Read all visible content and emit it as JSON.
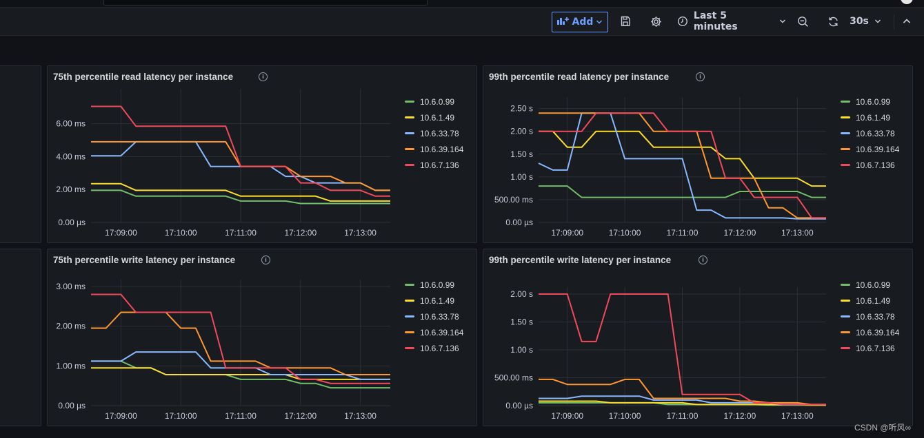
{
  "toolbar": {
    "add_label": "Add",
    "time_range": "Last 5 minutes",
    "refresh_interval": "30s"
  },
  "colors": {
    "10.6.0.99": "#73bf69",
    "10.6.1.49": "#fade2a",
    "10.6.33.78": "#8ab8ff",
    "10.6.39.164": "#ff9830",
    "10.6.7.136": "#f2495c"
  },
  "series_names": [
    "10.6.0.99",
    "10.6.1.49",
    "10.6.33.78",
    "10.6.39.164",
    "10.6.7.136"
  ],
  "watermark": "CSDN @听风∞",
  "panels": [
    {
      "title": "75th percentile read latency per instance",
      "chart_data": {
        "type": "line",
        "x_labels": [
          "17:09:00",
          "17:10:00",
          "17:11:00",
          "17:12:00",
          "17:13:00"
        ],
        "x": [
          0,
          15,
          30,
          45,
          60,
          75,
          90,
          105,
          120,
          135,
          150,
          165,
          180,
          195,
          210,
          225,
          240,
          255,
          270,
          285,
          300
        ],
        "y_ticks": [
          0,
          2,
          4,
          6
        ],
        "y_tick_labels": [
          "0.00 µs",
          "2.00 ms",
          "4.00 ms",
          "6.00 ms"
        ],
        "ylim": [
          0,
          7.7
        ],
        "unit": "ms",
        "series": [
          {
            "name": "10.6.0.99",
            "values": [
              1.95,
              1.95,
              1.95,
              1.6,
              1.6,
              1.6,
              1.6,
              1.6,
              1.6,
              1.6,
              1.3,
              1.3,
              1.3,
              1.3,
              1.15,
              1.15,
              1.15,
              1.15,
              1.15,
              1.15,
              1.15
            ]
          },
          {
            "name": "10.6.1.49",
            "values": [
              2.35,
              2.35,
              2.35,
              1.95,
              1.95,
              1.95,
              1.95,
              1.95,
              1.95,
              1.95,
              1.6,
              1.6,
              1.6,
              1.6,
              1.6,
              1.6,
              1.3,
              1.3,
              1.3,
              1.3,
              1.3
            ]
          },
          {
            "name": "10.6.33.78",
            "values": [
              4.05,
              4.05,
              4.05,
              4.9,
              4.9,
              4.9,
              4.9,
              4.9,
              3.4,
              3.4,
              3.4,
              3.4,
              3.4,
              2.8,
              2.8,
              2.4,
              2.4,
              2.4,
              2.4,
              1.95,
              1.95
            ]
          },
          {
            "name": "10.6.39.164",
            "values": [
              4.9,
              4.9,
              4.9,
              4.9,
              4.9,
              4.9,
              4.9,
              4.9,
              4.9,
              4.9,
              3.4,
              3.4,
              3.4,
              3.4,
              2.8,
              2.8,
              2.8,
              2.4,
              2.4,
              1.95,
              1.95
            ]
          },
          {
            "name": "10.6.7.136",
            "values": [
              7.05,
              7.05,
              7.05,
              5.85,
              5.85,
              5.85,
              5.85,
              5.85,
              5.85,
              5.85,
              3.4,
              3.4,
              3.4,
              3.4,
              2.4,
              2.4,
              1.95,
              1.95,
              1.95,
              1.6,
              1.6
            ]
          }
        ]
      }
    },
    {
      "title": "99th percentile read latency per instance",
      "chart_data": {
        "type": "line",
        "x_labels": [
          "17:09:00",
          "17:10:00",
          "17:11:00",
          "17:12:00",
          "17:13:00"
        ],
        "x": [
          0,
          15,
          30,
          45,
          60,
          75,
          90,
          105,
          120,
          135,
          150,
          165,
          180,
          195,
          210,
          225,
          240,
          255,
          270,
          285,
          300
        ],
        "y_ticks": [
          0,
          0.5,
          1,
          1.5,
          2,
          2.5
        ],
        "y_tick_labels": [
          "0.00 µs",
          "500.00 ms",
          "1.00 s",
          "1.50 s",
          "2.00 s",
          "2.50 s"
        ],
        "ylim": [
          0,
          2.6
        ],
        "unit": "s",
        "series": [
          {
            "name": "10.6.0.99",
            "values": [
              0.8,
              0.8,
              0.8,
              0.55,
              0.55,
              0.55,
              0.55,
              0.55,
              0.55,
              0.55,
              0.55,
              0.55,
              0.55,
              0.55,
              0.68,
              0.68,
              0.68,
              0.68,
              0.68,
              0.55,
              0.55
            ]
          },
          {
            "name": "10.6.1.49",
            "values": [
              2.0,
              2.0,
              1.65,
              1.65,
              2.0,
              2.0,
              2.0,
              2.0,
              1.65,
              1.65,
              1.65,
              1.65,
              1.65,
              1.4,
              1.4,
              0.97,
              0.97,
              0.97,
              0.97,
              0.8,
              0.8
            ]
          },
          {
            "name": "10.6.33.78",
            "values": [
              1.3,
              1.15,
              1.15,
              2.4,
              2.4,
              2.4,
              1.4,
              1.4,
              1.4,
              1.4,
              1.4,
              0.27,
              0.27,
              0.1,
              0.1,
              0.1,
              0.1,
              0.1,
              0.08,
              0.08,
              0.08
            ]
          },
          {
            "name": "10.6.39.164",
            "values": [
              2.4,
              2.4,
              2.4,
              2.4,
              2.4,
              2.4,
              2.4,
              2.4,
              2.0,
              2.0,
              2.0,
              2.0,
              0.97,
              0.97,
              0.97,
              0.97,
              0.32,
              0.32,
              0.1,
              0.1,
              0.1
            ]
          },
          {
            "name": "10.6.7.136",
            "values": [
              2.0,
              2.0,
              2.0,
              2.0,
              2.4,
              2.4,
              2.4,
              2.4,
              2.4,
              2.0,
              2.0,
              2.0,
              2.0,
              0.97,
              0.97,
              0.55,
              0.55,
              0.55,
              0.55,
              0.1,
              0.1
            ]
          }
        ]
      }
    },
    {
      "title": "75th percentile write latency per instance",
      "chart_data": {
        "type": "line",
        "x_labels": [
          "17:09:00",
          "17:10:00",
          "17:11:00",
          "17:12:00",
          "17:13:00"
        ],
        "x": [
          0,
          15,
          30,
          45,
          60,
          75,
          90,
          105,
          120,
          135,
          150,
          165,
          180,
          195,
          210,
          225,
          240,
          255,
          270,
          285,
          300
        ],
        "y_ticks": [
          0,
          1,
          2,
          3
        ],
        "y_tick_labels": [
          "0.00 µs",
          "1.00 ms",
          "2.00 ms",
          "3.00 ms"
        ],
        "ylim": [
          0,
          3.0
        ],
        "unit": "ms",
        "series": [
          {
            "name": "10.6.0.99",
            "values": [
              1.12,
              1.12,
              1.12,
              0.95,
              0.95,
              0.78,
              0.78,
              0.78,
              0.78,
              0.78,
              0.66,
              0.66,
              0.66,
              0.66,
              0.56,
              0.56,
              0.45,
              0.45,
              0.45,
              0.45,
              0.45
            ]
          },
          {
            "name": "10.6.1.49",
            "values": [
              0.95,
              0.95,
              0.95,
              0.95,
              0.95,
              0.78,
              0.78,
              0.78,
              0.78,
              0.78,
              0.78,
              0.78,
              0.78,
              0.78,
              0.66,
              0.66,
              0.66,
              0.66,
              0.66,
              0.66,
              0.66
            ]
          },
          {
            "name": "10.6.33.78",
            "values": [
              1.12,
              1.12,
              1.12,
              1.35,
              1.35,
              1.35,
              1.35,
              1.35,
              0.95,
              0.95,
              0.95,
              0.95,
              0.78,
              0.78,
              0.78,
              0.78,
              0.78,
              0.78,
              0.66,
              0.66,
              0.66
            ]
          },
          {
            "name": "10.6.39.164",
            "values": [
              1.95,
              1.95,
              2.35,
              2.35,
              2.35,
              2.35,
              1.95,
              1.95,
              1.12,
              1.12,
              1.12,
              1.12,
              0.95,
              0.95,
              0.95,
              0.95,
              0.95,
              0.78,
              0.78,
              0.78,
              0.78
            ]
          },
          {
            "name": "10.6.7.136",
            "values": [
              2.8,
              2.8,
              2.8,
              2.35,
              2.35,
              2.35,
              2.35,
              2.35,
              2.35,
              0.95,
              0.95,
              0.95,
              0.95,
              0.95,
              0.66,
              0.66,
              0.56,
              0.56,
              0.56,
              0.56,
              0.56
            ]
          }
        ]
      }
    },
    {
      "title": "99th percentile write latency per instance",
      "chart_data": {
        "type": "line",
        "x_labels": [
          "17:09:00",
          "17:10:00",
          "17:11:00",
          "17:12:00",
          "17:13:00"
        ],
        "x": [
          0,
          15,
          30,
          45,
          60,
          75,
          90,
          105,
          120,
          135,
          150,
          165,
          180,
          195,
          210,
          225,
          240,
          255,
          270,
          285,
          300
        ],
        "y_ticks": [
          0,
          0.5,
          1,
          1.5,
          2
        ],
        "y_tick_labels": [
          "0.00 µs",
          "500.00 ms",
          "1.00 s",
          "1.50 s",
          "2.00 s"
        ],
        "ylim": [
          0,
          2.0
        ],
        "unit": "s",
        "series": [
          {
            "name": "10.6.0.99",
            "values": [
              0.05,
              0.05,
              0.05,
              0.05,
              0.05,
              0.05,
              0.05,
              0.05,
              0.05,
              0.02,
              0.02,
              0.02,
              0.02,
              0.02,
              0.02,
              0.02,
              0.01,
              0.01,
              0.01,
              0.01,
              0.01
            ]
          },
          {
            "name": "10.6.1.49",
            "values": [
              0.08,
              0.08,
              0.08,
              0.08,
              0.08,
              0.05,
              0.05,
              0.05,
              0.05,
              0.05,
              0.05,
              0.02,
              0.02,
              0.02,
              0.02,
              0.02,
              0.02,
              0.02,
              0.02,
              0.01,
              0.01
            ]
          },
          {
            "name": "10.6.33.78",
            "values": [
              0.13,
              0.13,
              0.13,
              0.17,
              0.17,
              0.17,
              0.17,
              0.17,
              0.1,
              0.1,
              0.1,
              0.1,
              0.05,
              0.05,
              0.05,
              0.05,
              0.05,
              0.02,
              0.02,
              0.02,
              0.02
            ]
          },
          {
            "name": "10.6.39.164",
            "values": [
              0.47,
              0.47,
              0.38,
              0.38,
              0.38,
              0.38,
              0.47,
              0.47,
              0.13,
              0.13,
              0.13,
              0.13,
              0.13,
              0.13,
              0.08,
              0.08,
              0.05,
              0.05,
              0.05,
              0.02,
              0.02
            ]
          },
          {
            "name": "10.6.7.136",
            "values": [
              2.0,
              2.0,
              2.0,
              1.15,
              1.15,
              2.0,
              2.0,
              2.0,
              2.0,
              2.0,
              0.2,
              0.2,
              0.2,
              0.2,
              0.2,
              0.05,
              0.05,
              0.02,
              0.02,
              0.02,
              0.02
            ]
          }
        ]
      }
    }
  ]
}
